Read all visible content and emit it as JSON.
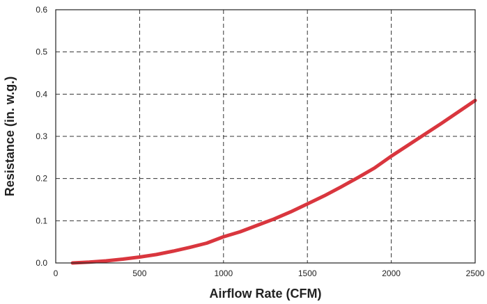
{
  "colors": {
    "series": "#d9363e",
    "grid": "#333333",
    "frame": "#222222",
    "text": "#222222",
    "background": "#ffffff"
  },
  "chart_data": {
    "type": "line",
    "title": "",
    "xlabel": "Airflow Rate (CFM)",
    "ylabel": "Resistance (in. w.g.)",
    "xlim": [
      0,
      2500
    ],
    "ylim": [
      0,
      0.6
    ],
    "x_ticks": [
      "0",
      "500",
      "1000",
      "1500",
      "2000",
      "2500"
    ],
    "y_ticks": [
      "0.0",
      "0.1",
      "0.2",
      "0.3",
      "0.4",
      "0.5",
      "0.6"
    ],
    "x_tick_values": [
      0,
      500,
      1000,
      1500,
      2000,
      2500
    ],
    "y_tick_values": [
      0,
      0.1,
      0.2,
      0.3,
      0.4,
      0.5,
      0.6
    ],
    "grid": true,
    "grid_style": "dashed",
    "legend": "none",
    "series": [
      {
        "x": [
          100,
          200,
          300,
          400,
          500,
          600,
          700,
          800,
          900,
          1000,
          1100,
          1200,
          1300,
          1400,
          1500,
          1600,
          1700,
          1800,
          1900,
          2000,
          2100,
          2200,
          2300,
          2400,
          2500
        ],
        "y": [
          0.0,
          0.002,
          0.005,
          0.009,
          0.014,
          0.02,
          0.028,
          0.037,
          0.047,
          0.062,
          0.074,
          0.089,
          0.104,
          0.121,
          0.14,
          0.159,
          0.18,
          0.202,
          0.225,
          0.253,
          0.279,
          0.305,
          0.331,
          0.358,
          0.385
        ]
      }
    ]
  }
}
